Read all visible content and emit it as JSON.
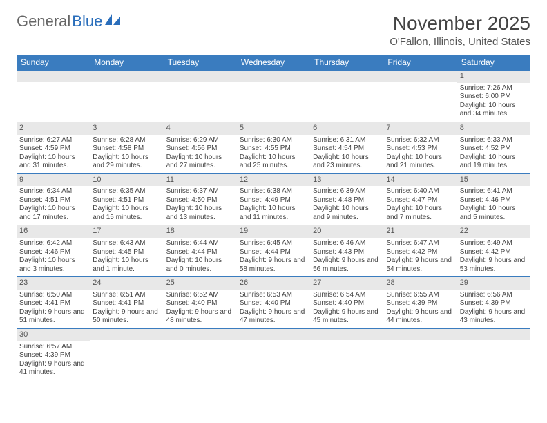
{
  "logo": {
    "part1": "General",
    "part2": "Blue"
  },
  "title": "November 2025",
  "location": "O'Fallon, Illinois, United States",
  "colors": {
    "header_bg": "#3a7cbf",
    "header_fg": "#ffffff",
    "daynum_bg": "#e8e8e8",
    "border": "#3a7cbf",
    "text": "#444444",
    "logo_blue": "#2a6ebb"
  },
  "dayHeaders": [
    "Sunday",
    "Monday",
    "Tuesday",
    "Wednesday",
    "Thursday",
    "Friday",
    "Saturday"
  ],
  "weeks": [
    [
      {
        "num": "",
        "sunrise": "",
        "sunset": "",
        "daylight": ""
      },
      {
        "num": "",
        "sunrise": "",
        "sunset": "",
        "daylight": ""
      },
      {
        "num": "",
        "sunrise": "",
        "sunset": "",
        "daylight": ""
      },
      {
        "num": "",
        "sunrise": "",
        "sunset": "",
        "daylight": ""
      },
      {
        "num": "",
        "sunrise": "",
        "sunset": "",
        "daylight": ""
      },
      {
        "num": "",
        "sunrise": "",
        "sunset": "",
        "daylight": ""
      },
      {
        "num": "1",
        "sunrise": "Sunrise: 7:26 AM",
        "sunset": "Sunset: 6:00 PM",
        "daylight": "Daylight: 10 hours and 34 minutes."
      }
    ],
    [
      {
        "num": "2",
        "sunrise": "Sunrise: 6:27 AM",
        "sunset": "Sunset: 4:59 PM",
        "daylight": "Daylight: 10 hours and 31 minutes."
      },
      {
        "num": "3",
        "sunrise": "Sunrise: 6:28 AM",
        "sunset": "Sunset: 4:58 PM",
        "daylight": "Daylight: 10 hours and 29 minutes."
      },
      {
        "num": "4",
        "sunrise": "Sunrise: 6:29 AM",
        "sunset": "Sunset: 4:56 PM",
        "daylight": "Daylight: 10 hours and 27 minutes."
      },
      {
        "num": "5",
        "sunrise": "Sunrise: 6:30 AM",
        "sunset": "Sunset: 4:55 PM",
        "daylight": "Daylight: 10 hours and 25 minutes."
      },
      {
        "num": "6",
        "sunrise": "Sunrise: 6:31 AM",
        "sunset": "Sunset: 4:54 PM",
        "daylight": "Daylight: 10 hours and 23 minutes."
      },
      {
        "num": "7",
        "sunrise": "Sunrise: 6:32 AM",
        "sunset": "Sunset: 4:53 PM",
        "daylight": "Daylight: 10 hours and 21 minutes."
      },
      {
        "num": "8",
        "sunrise": "Sunrise: 6:33 AM",
        "sunset": "Sunset: 4:52 PM",
        "daylight": "Daylight: 10 hours and 19 minutes."
      }
    ],
    [
      {
        "num": "9",
        "sunrise": "Sunrise: 6:34 AM",
        "sunset": "Sunset: 4:51 PM",
        "daylight": "Daylight: 10 hours and 17 minutes."
      },
      {
        "num": "10",
        "sunrise": "Sunrise: 6:35 AM",
        "sunset": "Sunset: 4:51 PM",
        "daylight": "Daylight: 10 hours and 15 minutes."
      },
      {
        "num": "11",
        "sunrise": "Sunrise: 6:37 AM",
        "sunset": "Sunset: 4:50 PM",
        "daylight": "Daylight: 10 hours and 13 minutes."
      },
      {
        "num": "12",
        "sunrise": "Sunrise: 6:38 AM",
        "sunset": "Sunset: 4:49 PM",
        "daylight": "Daylight: 10 hours and 11 minutes."
      },
      {
        "num": "13",
        "sunrise": "Sunrise: 6:39 AM",
        "sunset": "Sunset: 4:48 PM",
        "daylight": "Daylight: 10 hours and 9 minutes."
      },
      {
        "num": "14",
        "sunrise": "Sunrise: 6:40 AM",
        "sunset": "Sunset: 4:47 PM",
        "daylight": "Daylight: 10 hours and 7 minutes."
      },
      {
        "num": "15",
        "sunrise": "Sunrise: 6:41 AM",
        "sunset": "Sunset: 4:46 PM",
        "daylight": "Daylight: 10 hours and 5 minutes."
      }
    ],
    [
      {
        "num": "16",
        "sunrise": "Sunrise: 6:42 AM",
        "sunset": "Sunset: 4:46 PM",
        "daylight": "Daylight: 10 hours and 3 minutes."
      },
      {
        "num": "17",
        "sunrise": "Sunrise: 6:43 AM",
        "sunset": "Sunset: 4:45 PM",
        "daylight": "Daylight: 10 hours and 1 minute."
      },
      {
        "num": "18",
        "sunrise": "Sunrise: 6:44 AM",
        "sunset": "Sunset: 4:44 PM",
        "daylight": "Daylight: 10 hours and 0 minutes."
      },
      {
        "num": "19",
        "sunrise": "Sunrise: 6:45 AM",
        "sunset": "Sunset: 4:44 PM",
        "daylight": "Daylight: 9 hours and 58 minutes."
      },
      {
        "num": "20",
        "sunrise": "Sunrise: 6:46 AM",
        "sunset": "Sunset: 4:43 PM",
        "daylight": "Daylight: 9 hours and 56 minutes."
      },
      {
        "num": "21",
        "sunrise": "Sunrise: 6:47 AM",
        "sunset": "Sunset: 4:42 PM",
        "daylight": "Daylight: 9 hours and 54 minutes."
      },
      {
        "num": "22",
        "sunrise": "Sunrise: 6:49 AM",
        "sunset": "Sunset: 4:42 PM",
        "daylight": "Daylight: 9 hours and 53 minutes."
      }
    ],
    [
      {
        "num": "23",
        "sunrise": "Sunrise: 6:50 AM",
        "sunset": "Sunset: 4:41 PM",
        "daylight": "Daylight: 9 hours and 51 minutes."
      },
      {
        "num": "24",
        "sunrise": "Sunrise: 6:51 AM",
        "sunset": "Sunset: 4:41 PM",
        "daylight": "Daylight: 9 hours and 50 minutes."
      },
      {
        "num": "25",
        "sunrise": "Sunrise: 6:52 AM",
        "sunset": "Sunset: 4:40 PM",
        "daylight": "Daylight: 9 hours and 48 minutes."
      },
      {
        "num": "26",
        "sunrise": "Sunrise: 6:53 AM",
        "sunset": "Sunset: 4:40 PM",
        "daylight": "Daylight: 9 hours and 47 minutes."
      },
      {
        "num": "27",
        "sunrise": "Sunrise: 6:54 AM",
        "sunset": "Sunset: 4:40 PM",
        "daylight": "Daylight: 9 hours and 45 minutes."
      },
      {
        "num": "28",
        "sunrise": "Sunrise: 6:55 AM",
        "sunset": "Sunset: 4:39 PM",
        "daylight": "Daylight: 9 hours and 44 minutes."
      },
      {
        "num": "29",
        "sunrise": "Sunrise: 6:56 AM",
        "sunset": "Sunset: 4:39 PM",
        "daylight": "Daylight: 9 hours and 43 minutes."
      }
    ],
    [
      {
        "num": "30",
        "sunrise": "Sunrise: 6:57 AM",
        "sunset": "Sunset: 4:39 PM",
        "daylight": "Daylight: 9 hours and 41 minutes."
      },
      {
        "num": "",
        "sunrise": "",
        "sunset": "",
        "daylight": ""
      },
      {
        "num": "",
        "sunrise": "",
        "sunset": "",
        "daylight": ""
      },
      {
        "num": "",
        "sunrise": "",
        "sunset": "",
        "daylight": ""
      },
      {
        "num": "",
        "sunrise": "",
        "sunset": "",
        "daylight": ""
      },
      {
        "num": "",
        "sunrise": "",
        "sunset": "",
        "daylight": ""
      },
      {
        "num": "",
        "sunrise": "",
        "sunset": "",
        "daylight": ""
      }
    ]
  ]
}
